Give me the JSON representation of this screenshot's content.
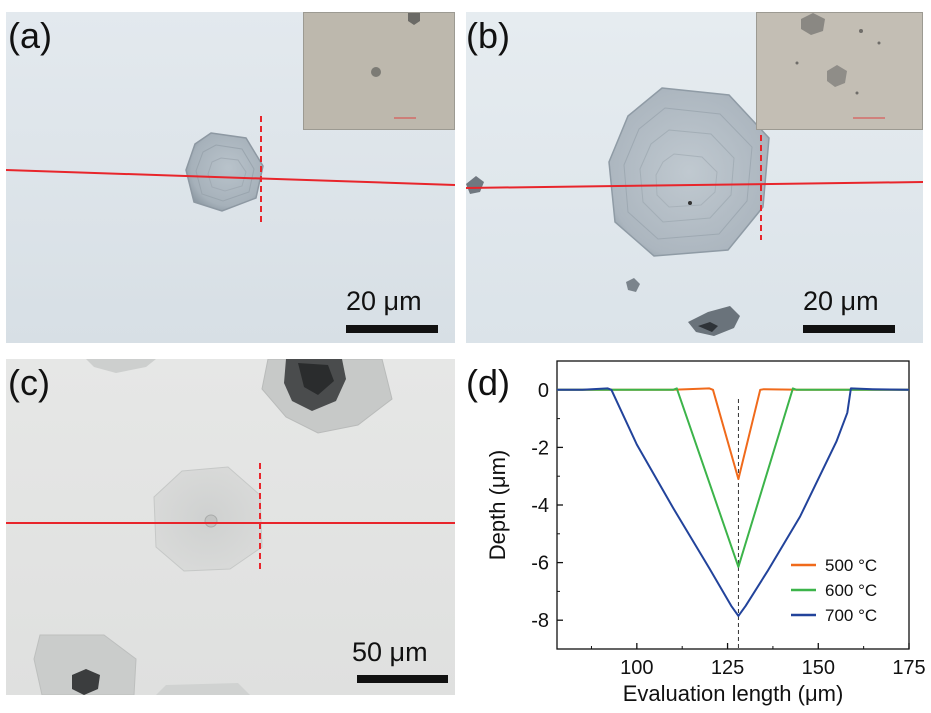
{
  "panels": {
    "a": {
      "label": "(a)",
      "scale_label": "20 μm"
    },
    "b": {
      "label": "(b)",
      "scale_label": "20 μm"
    },
    "c": {
      "label": "(c)",
      "scale_label": "50 μm"
    },
    "d": {
      "label": "(d)"
    }
  },
  "colors": {
    "profile_line": "#e8252b",
    "micrograph_bg": "#dde5ea",
    "inset_bg": "#bdb8ad",
    "series_500": "#f06a1b",
    "series_600": "#3cb44a",
    "series_700": "#22439b"
  },
  "chart_data": {
    "type": "line",
    "xlabel": "Evaluation length (μm)",
    "ylabel": "Depth (μm)",
    "xlim": [
      78,
      175
    ],
    "ylim": [
      -9,
      1
    ],
    "xticks": [
      100,
      125,
      150,
      175
    ],
    "yticks": [
      0,
      -2,
      -4,
      -6,
      -8
    ],
    "legend_position": "bottom-right",
    "reference_line_x": 128,
    "series": [
      {
        "name": "500 °C",
        "color": "#f06a1b",
        "x": [
          78,
          100,
          110,
          120,
          121,
          128,
          134,
          135,
          145,
          160,
          175
        ],
        "y": [
          0,
          0,
          0,
          0.05,
          0,
          -3.1,
          0,
          0.02,
          0,
          0,
          0
        ]
      },
      {
        "name": "600 °C",
        "color": "#3cb44a",
        "x": [
          78,
          100,
          110,
          111,
          128,
          143,
          144,
          150,
          160,
          175
        ],
        "y": [
          0,
          0,
          0,
          0.05,
          -6.15,
          0.05,
          0,
          0,
          0,
          0
        ]
      },
      {
        "name": "700 °C",
        "color": "#22439b",
        "x": [
          78,
          85,
          92,
          93,
          100,
          110,
          120,
          126,
          128,
          130,
          136,
          145,
          155,
          158,
          159,
          165,
          175
        ],
        "y": [
          0,
          0,
          0.05,
          0,
          -1.9,
          -4.1,
          -6.2,
          -7.5,
          -7.85,
          -7.5,
          -6.3,
          -4.4,
          -1.8,
          -0.8,
          0.05,
          0.02,
          0
        ]
      }
    ]
  }
}
